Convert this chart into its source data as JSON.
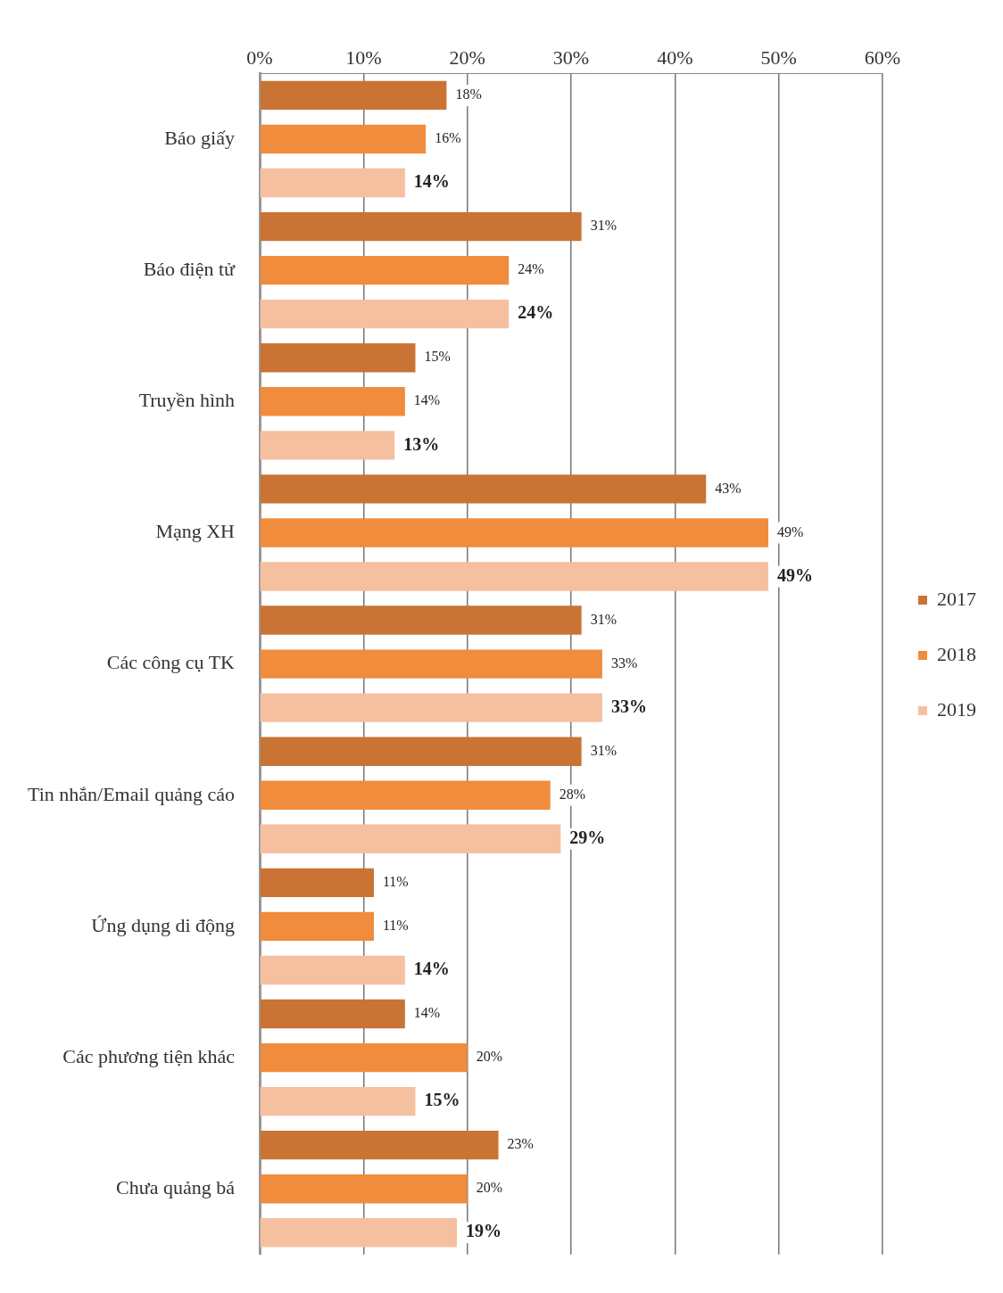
{
  "chart_data": {
    "type": "bar",
    "orientation": "horizontal",
    "categories": [
      "Báo giấy",
      "Báo điện tử",
      "Truyền hình",
      "Mạng XH",
      "Các công cụ TK",
      "Tin nhắn/Email quảng cáo",
      "Ứng dụng di động",
      "Các phương tiện khác",
      "Chưa quảng bá"
    ],
    "series": [
      {
        "name": "2017",
        "color": "#c97434",
        "values": [
          18,
          31,
          15,
          43,
          31,
          31,
          11,
          14,
          23
        ],
        "value_labels": [
          "18%",
          "31%",
          "15%",
          "43%",
          "31%",
          "31%",
          "11%",
          "14%",
          "23%"
        ]
      },
      {
        "name": "2018",
        "color": "#f08c3c",
        "values": [
          16,
          24,
          14,
          49,
          33,
          28,
          11,
          20,
          20
        ],
        "value_labels": [
          "16%",
          "24%",
          "14%",
          "49%",
          "33%",
          "28%",
          "11%",
          "20%",
          "20%"
        ]
      },
      {
        "name": "2019",
        "color": "#f5c0a0",
        "values": [
          14,
          24,
          13,
          49,
          33,
          29,
          14,
          15,
          19
        ],
        "value_labels": [
          "14%",
          "24%",
          "13%",
          "49%",
          "33%",
          "29%",
          "14%",
          "15%",
          "19%"
        ]
      }
    ],
    "xlim": [
      0,
      60
    ],
    "xticks": [
      {
        "value": 0,
        "label": "0%"
      },
      {
        "value": 10,
        "label": "10%"
      },
      {
        "value": 20,
        "label": "20%"
      },
      {
        "value": 30,
        "label": "30%"
      },
      {
        "value": 40,
        "label": "40%"
      },
      {
        "value": 50,
        "label": "50%"
      },
      {
        "value": 60,
        "label": "60%"
      }
    ],
    "grid": "x",
    "legend": "right"
  }
}
